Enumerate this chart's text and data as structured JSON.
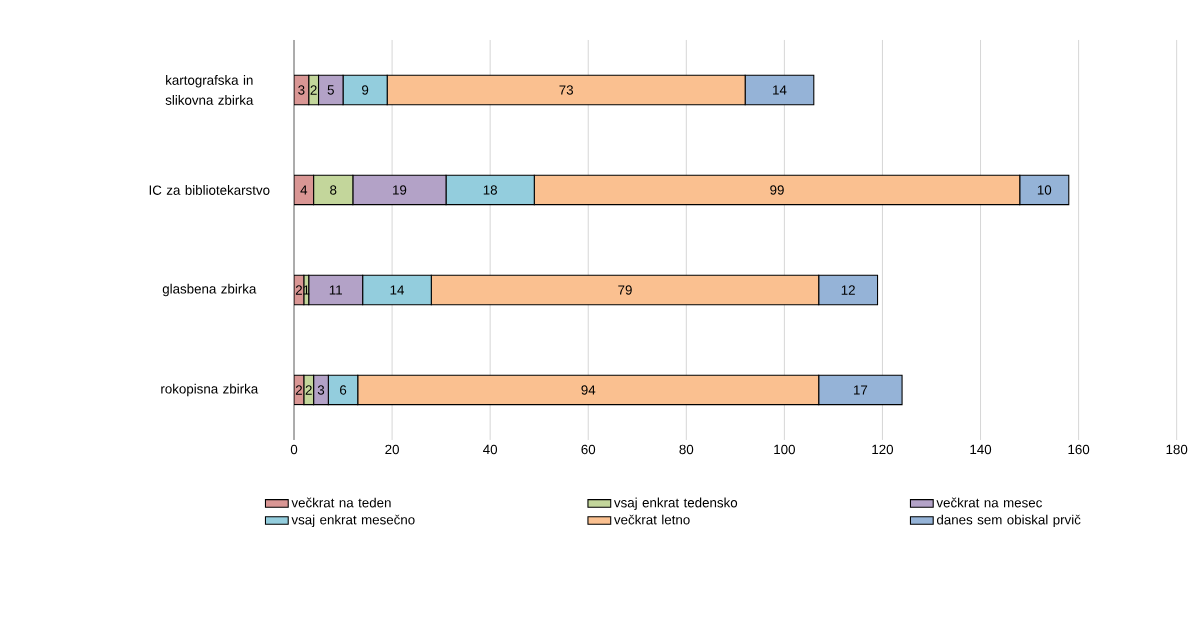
{
  "chart_data": {
    "type": "bar",
    "orientation": "horizontal",
    "stacked": true,
    "data_labels": true,
    "grid": "x",
    "legend": "bottom",
    "categories": [
      "kartografska in slikovna zbirka",
      "IC za bibliotekarstvo",
      "glasbena zbirka",
      "rokopisna zbirka"
    ],
    "xlim": [
      0,
      180
    ],
    "xticks": [
      0,
      20,
      40,
      60,
      80,
      100,
      120,
      140,
      160,
      180
    ],
    "series": [
      {
        "name": "večkrat na teden",
        "color": "#d99694",
        "values": [
          3,
          4,
          2,
          2
        ]
      },
      {
        "name": "vsaj enkrat tedensko",
        "color": "#c3d69b",
        "values": [
          2,
          8,
          1,
          2
        ]
      },
      {
        "name": "večkrat na mesec",
        "color": "#b3a2c7",
        "values": [
          5,
          19,
          11,
          3
        ]
      },
      {
        "name": "vsaj enkrat mesečno",
        "color": "#93cddd",
        "values": [
          9,
          18,
          14,
          6
        ]
      },
      {
        "name": "večkrat letno",
        "color": "#fac090",
        "values": [
          73,
          99,
          79,
          94
        ]
      },
      {
        "name": "danes sem obiskal prvič",
        "color": "#95b3d7",
        "values": [
          14,
          10,
          12,
          17
        ]
      }
    ]
  }
}
